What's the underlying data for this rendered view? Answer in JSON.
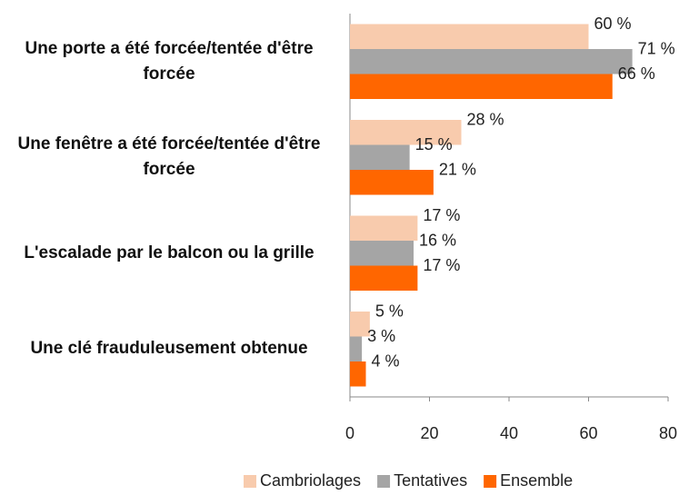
{
  "chart_data": {
    "type": "hbar",
    "categories": [
      "Une porte a été forcée/tentée d'être forcée",
      "Une fenêtre a été forcée/tentée d'être forcée",
      "L'escalade par le balcon ou la grille",
      "Une clé frauduleusement obtenue"
    ],
    "series": [
      {
        "name": "Cambriolages",
        "color": "#f8cbad",
        "values": [
          60,
          28,
          17,
          5
        ],
        "value_labels": [
          "60 %",
          "28 %",
          "17 %",
          "5 %"
        ]
      },
      {
        "name": "Tentatives",
        "color": "#a5a5a5",
        "values": [
          71,
          15,
          16,
          3
        ],
        "value_labels": [
          "71 %",
          "15 %",
          "16 %",
          "3 %"
        ]
      },
      {
        "name": "Ensemble",
        "color": "#ff6600",
        "values": [
          66,
          21,
          17,
          4
        ],
        "value_labels": [
          "66 %",
          "21 %",
          "17 %",
          "4 %"
        ]
      }
    ],
    "xlim": [
      0,
      80
    ],
    "xticks": [
      0,
      20,
      40,
      60,
      80
    ],
    "legend": "bottom"
  }
}
